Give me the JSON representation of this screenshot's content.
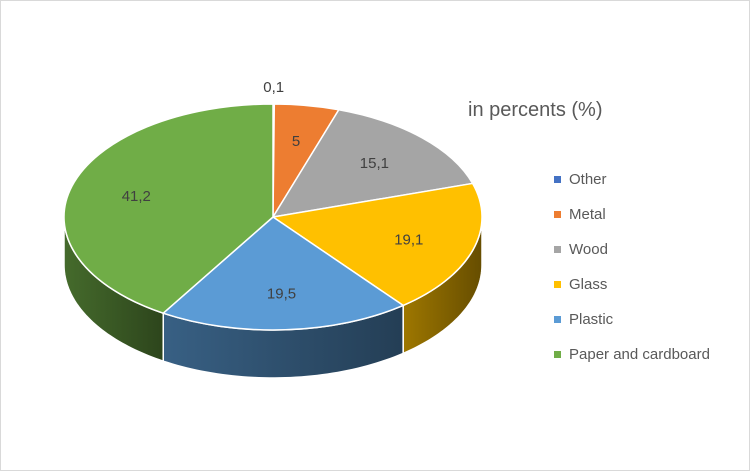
{
  "chart_data": {
    "type": "pie",
    "style": "3d",
    "title": "in percents (%)",
    "categories": [
      "Other",
      "Metal",
      "Wood",
      "Glass",
      "Plastic",
      "Paper and cardboard"
    ],
    "values": [
      0.1,
      5,
      15.1,
      19.1,
      19.5,
      41.2
    ],
    "value_labels": [
      "0,1",
      "5",
      "15,1",
      "19,1",
      "19,5",
      "41,2"
    ],
    "colors": [
      "#4472C4",
      "#ED7D31",
      "#A5A5A5",
      "#FFC000",
      "#5B9BD5",
      "#70AD47"
    ],
    "legend_position": "right"
  }
}
